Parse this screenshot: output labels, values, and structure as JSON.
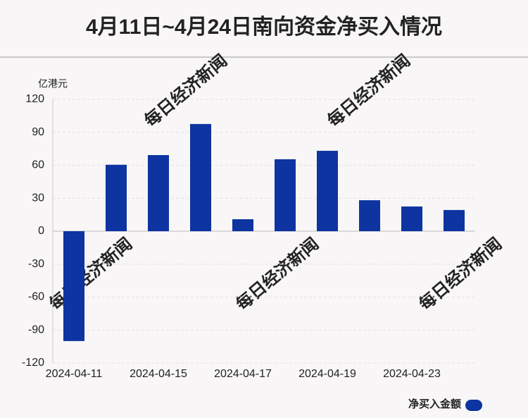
{
  "chart_data": {
    "type": "bar",
    "title": "4月11日~4月24日南向资金净买入情况",
    "y_axis_label": "亿港元",
    "watermark": "每日经济新闻",
    "categories": [
      "2024-04-11",
      null,
      "2024-04-15",
      null,
      "2024-04-17",
      null,
      "2024-04-19",
      null,
      "2024-04-23",
      null
    ],
    "series": [
      {
        "name": "净买入金额",
        "color": "#0d34a0",
        "values": [
          -100,
          60.5,
          69.3,
          97.6,
          10.9,
          65.5,
          73.2,
          28.2,
          22.5,
          19.3
        ]
      }
    ],
    "ylim": [
      -120,
      120
    ],
    "yticks": [
      -120,
      -90,
      -60,
      -30,
      0,
      30,
      60,
      90,
      120
    ],
    "grid": true,
    "legend": "bottom-right"
  }
}
